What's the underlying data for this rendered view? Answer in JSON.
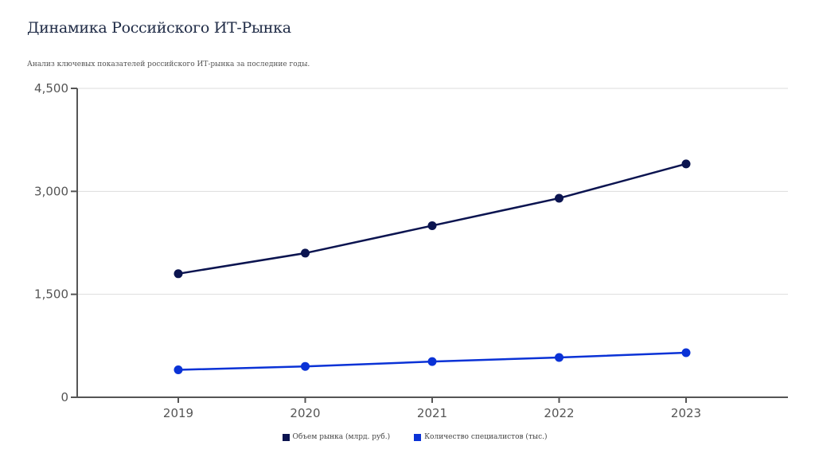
{
  "chart_data": {
    "type": "line",
    "title": "Динамика Российского ИТ-Рынка",
    "subtitle": "Анализ ключевых показателей российского ИТ-рынка за последние годы.",
    "xlabel": "",
    "ylabel": "",
    "categories": [
      "2019",
      "2020",
      "2021",
      "2022",
      "2023"
    ],
    "ylim": [
      0,
      4500
    ],
    "yticks": [
      0,
      1500,
      3000,
      4500
    ],
    "ytick_labels": [
      "0",
      "1,500",
      "3,000",
      "4,500"
    ],
    "grid": true,
    "legend_position": "bottom-center",
    "series": [
      {
        "name": "Объем рынка (млрд. руб.)",
        "color": "#0b1450",
        "values": [
          1800,
          2100,
          2500,
          2900,
          3400
        ]
      },
      {
        "name": "Количество специалистов (тыс.)",
        "color": "#0a32d6",
        "values": [
          400,
          450,
          520,
          580,
          650
        ]
      }
    ]
  }
}
